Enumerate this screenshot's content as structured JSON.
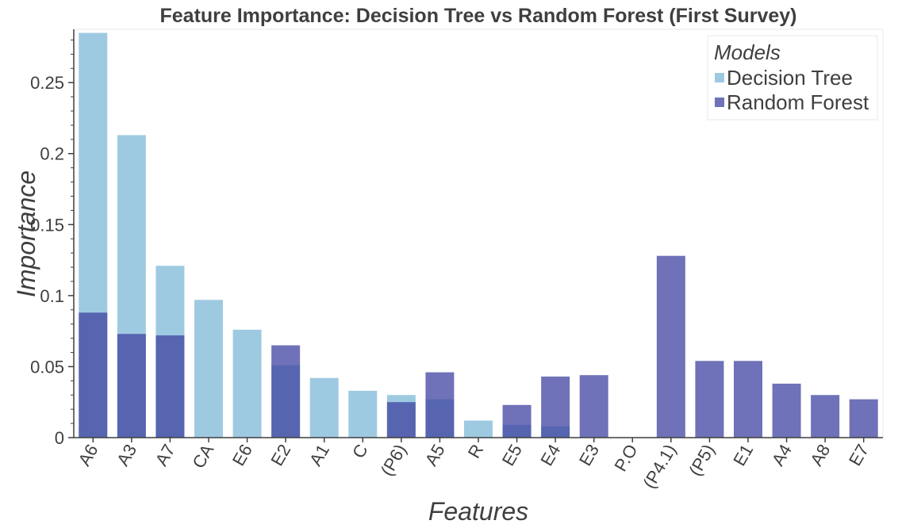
{
  "chart_data": {
    "type": "bar",
    "title": "Feature Importance: Decision Tree vs Random Forest (First Survey)",
    "xlabel": "Features",
    "ylabel": "Importance",
    "ylim": [
      0,
      0.2875
    ],
    "yticks": [
      0,
      0.05,
      0.1,
      0.15,
      0.2,
      0.25
    ],
    "ytick_labels": [
      "0",
      "0.05",
      "0.1",
      "0.15",
      "0.2",
      "0.25"
    ],
    "grid": false,
    "legend": {
      "title": "Models",
      "position": "top-right"
    },
    "categories": [
      "A6",
      "A3",
      "A7",
      "CA",
      "E6",
      "E2",
      "A1",
      "C",
      "(P6)",
      "A5",
      "R",
      "E5",
      "E4",
      "E3",
      "P.O",
      "(P4.1)",
      "(P5)",
      "E1",
      "A4",
      "A8",
      "E7"
    ],
    "series": [
      {
        "name": "Decision Tree",
        "color": "#9ecae1",
        "values": [
          0.285,
          0.213,
          0.121,
          0.097,
          0.076,
          0.051,
          0.042,
          0.033,
          0.03,
          0.027,
          0.012,
          0.009,
          0.008,
          0,
          0,
          0,
          0,
          0,
          0,
          0,
          0
        ]
      },
      {
        "name": "Random Forest",
        "color": "#3f43a0",
        "values": [
          0.088,
          0.073,
          0.072,
          0,
          0,
          0.065,
          0,
          0,
          0.025,
          0.046,
          0,
          0.023,
          0.043,
          0.044,
          0,
          0.128,
          0.054,
          0.054,
          0.038,
          0.03,
          0.027
        ]
      }
    ]
  }
}
